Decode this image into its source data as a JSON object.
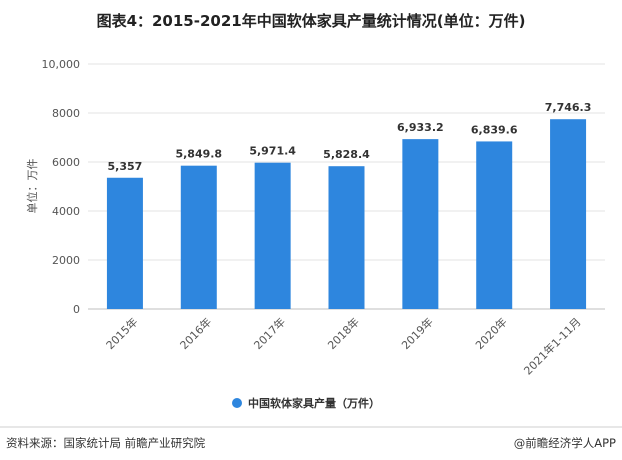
{
  "chart_data": {
    "type": "bar",
    "title": "图表4：2015-2021年中国软体家具产量统计情况(单位：万件)",
    "ylabel": "单位：万件",
    "xlabel": "",
    "categories": [
      "2015年",
      "2016年",
      "2017年",
      "2018年",
      "2019年",
      "2020年",
      "2021年1-11月"
    ],
    "series": [
      {
        "name": "中国软体家具产量（万件）",
        "values": [
          5357,
          5849.8,
          5971.4,
          5828.4,
          6933.2,
          6839.6,
          7746.3
        ]
      }
    ],
    "value_labels": [
      "5,357",
      "5,849.8",
      "5,971.4",
      "5,828.4",
      "6,933.2",
      "6,839.6",
      "7,746.3"
    ],
    "ylim": [
      0,
      10000
    ],
    "yticks": [
      0,
      2000,
      4000,
      6000,
      8000,
      10000
    ],
    "ytick_labels": [
      "0",
      "2000",
      "4000",
      "6000",
      "8000",
      "10,000"
    ],
    "grid": true,
    "legend_position": "bottom",
    "bar_color": "#2E86DE"
  },
  "footer": {
    "source": "资料来源：国家统计局 前瞻产业研究院",
    "brand": "@前瞻经济学人APP"
  }
}
